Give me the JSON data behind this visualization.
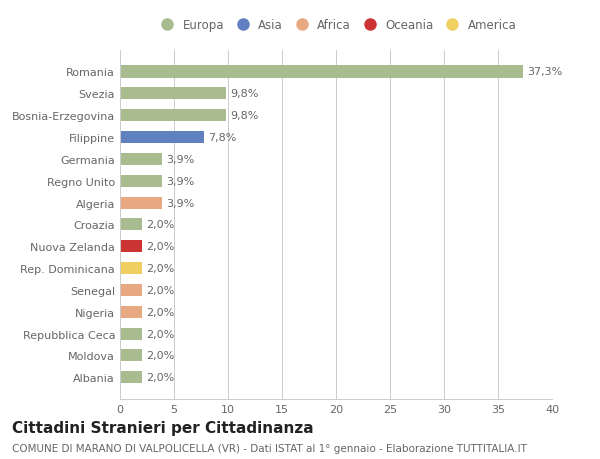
{
  "categories": [
    "Albania",
    "Moldova",
    "Repubblica Ceca",
    "Nigeria",
    "Senegal",
    "Rep. Dominicana",
    "Nuova Zelanda",
    "Croazia",
    "Algeria",
    "Regno Unito",
    "Germania",
    "Filippine",
    "Bosnia-Erzegovina",
    "Svezia",
    "Romania"
  ],
  "values": [
    2.0,
    2.0,
    2.0,
    2.0,
    2.0,
    2.0,
    2.0,
    2.0,
    3.9,
    3.9,
    3.9,
    7.8,
    9.8,
    9.8,
    37.3
  ],
  "labels": [
    "2,0%",
    "2,0%",
    "2,0%",
    "2,0%",
    "2,0%",
    "2,0%",
    "2,0%",
    "2,0%",
    "3,9%",
    "3,9%",
    "3,9%",
    "7,8%",
    "9,8%",
    "9,8%",
    "37,3%"
  ],
  "colors": [
    "#a8bc8f",
    "#a8bc8f",
    "#a8bc8f",
    "#e8a882",
    "#e8a882",
    "#f0d060",
    "#cc3333",
    "#a8bc8f",
    "#e8a882",
    "#a8bc8f",
    "#a8bc8f",
    "#6080c0",
    "#a8bc8f",
    "#a8bc8f",
    "#a8bc8f"
  ],
  "legend_labels": [
    "Europa",
    "Asia",
    "Africa",
    "Oceania",
    "America"
  ],
  "legend_colors": [
    "#a8bc8f",
    "#6080c0",
    "#e8a882",
    "#cc3333",
    "#f0d060"
  ],
  "title": "Cittadini Stranieri per Cittadinanza",
  "subtitle": "COMUNE DI MARANO DI VALPOLICELLA (VR) - Dati ISTAT al 1° gennaio - Elaborazione TUTTITALIA.IT",
  "xlim": [
    0,
    40
  ],
  "xticks": [
    0,
    5,
    10,
    15,
    20,
    25,
    30,
    35,
    40
  ],
  "bg_color": "#ffffff",
  "grid_color": "#cccccc",
  "bar_height": 0.55,
  "title_fontsize": 11,
  "subtitle_fontsize": 7.5,
  "tick_fontsize": 8,
  "label_fontsize": 8,
  "legend_fontsize": 8.5
}
